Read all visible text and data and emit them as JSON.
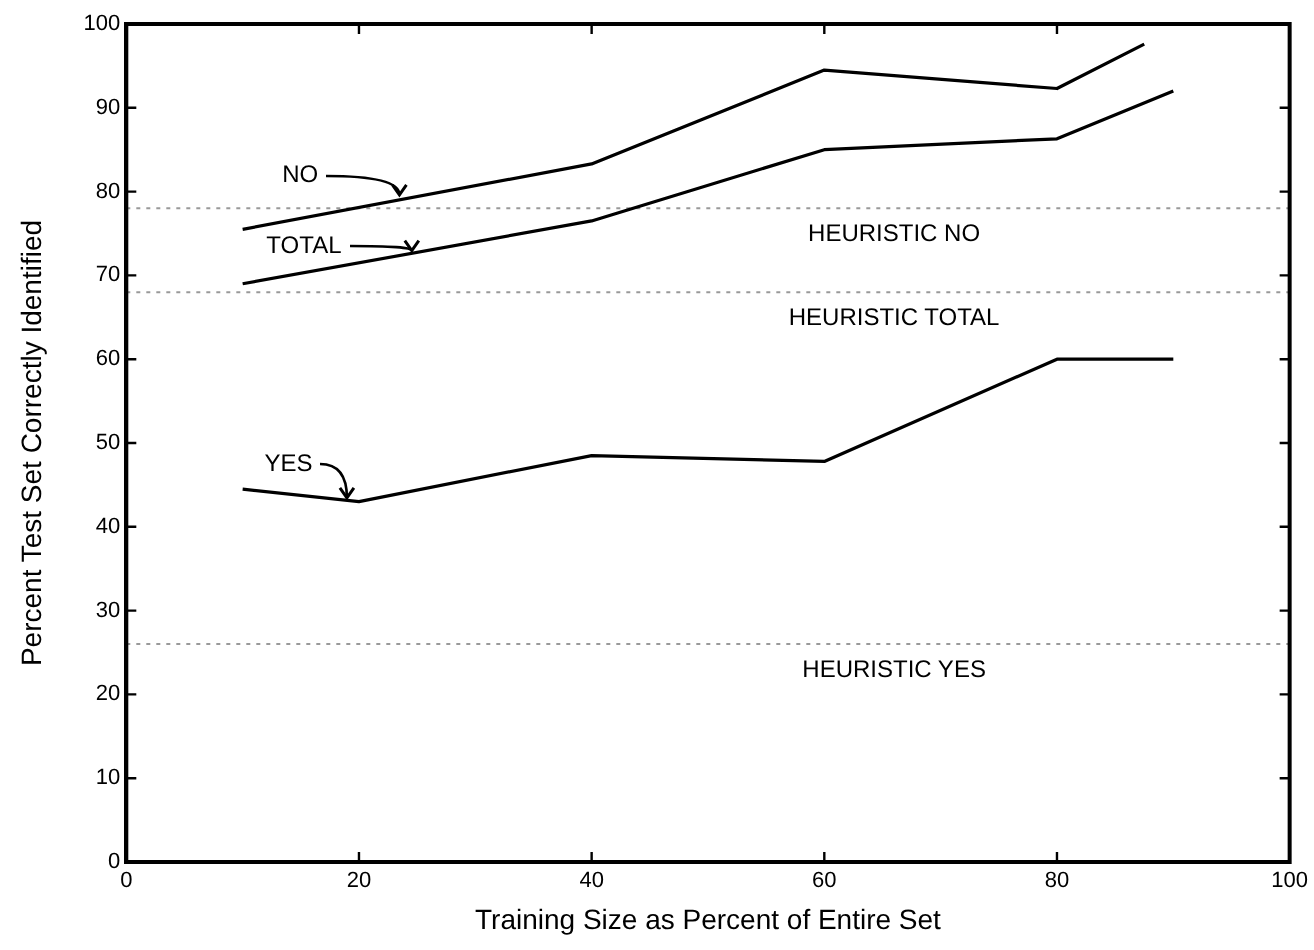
{
  "chart_data": {
    "type": "line",
    "xlabel": "Training Size as Percent of Entire Set",
    "ylabel": "Percent Test Set Correctly Identified",
    "xlim": [
      0,
      100
    ],
    "xticks": [
      0,
      20,
      40,
      60,
      80,
      100
    ],
    "ylim": [
      0,
      100
    ],
    "yticks": [
      0,
      10,
      20,
      30,
      40,
      50,
      60,
      70,
      80,
      90,
      100
    ],
    "grid": false,
    "legend": false,
    "marker": "none",
    "line_style": "solid",
    "series": [
      {
        "color": "#000000",
        "x": [
          10,
          40,
          60,
          80,
          87.5
        ],
        "values": [
          75.5,
          83.3,
          94.5,
          92.3,
          97.6
        ]
      },
      {
        "color": "#000000",
        "x": [
          10,
          40,
          60,
          80,
          90
        ],
        "values": [
          69,
          76.5,
          85,
          86.3,
          92
        ]
      },
      {
        "color": "#000000",
        "x": [
          10,
          20,
          40,
          60,
          80,
          90
        ],
        "values": [
          44.5,
          43,
          48.5,
          47.8,
          60,
          60
        ]
      }
    ],
    "annotations": [
      {
        "text": "NO",
        "x": 23.5,
        "y": 79.3
      },
      {
        "text": "TOTAL",
        "x": 24.5,
        "y": 72.6
      },
      {
        "text": "YES",
        "x": 19,
        "y": 43.1
      }
    ],
    "ref_lines": [
      {
        "axis": "y",
        "value": 78,
        "label": "HEURISTIC NO",
        "color": "#999999",
        "line_style": "dotted"
      },
      {
        "axis": "y",
        "value": 68,
        "label": "HEURISTIC TOTAL",
        "color": "#999999",
        "line_style": "dotted"
      },
      {
        "axis": "y",
        "value": 26,
        "label": "HEURISTIC YES",
        "color": "#999999",
        "line_style": "dotted"
      }
    ]
  }
}
